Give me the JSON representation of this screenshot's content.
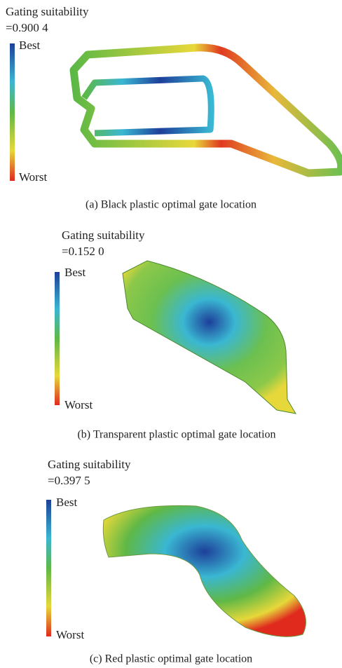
{
  "panels": [
    {
      "title": "Gating suitability",
      "value": "=0.900 4",
      "legend": {
        "best": "Best",
        "worst": "Worst"
      },
      "caption": "(a) Black plastic optimal gate location"
    },
    {
      "title": "Gating suitability",
      "value": "=0.152 0",
      "legend": {
        "best": "Best",
        "worst": "Worst"
      },
      "caption": "(b) Transparent plastic optimal gate location"
    },
    {
      "title": "Gating suitability",
      "value": "=0.397 5",
      "legend": {
        "best": "Best",
        "worst": "Worst"
      },
      "caption": "(c) Red plastic optimal gate location"
    }
  ]
}
